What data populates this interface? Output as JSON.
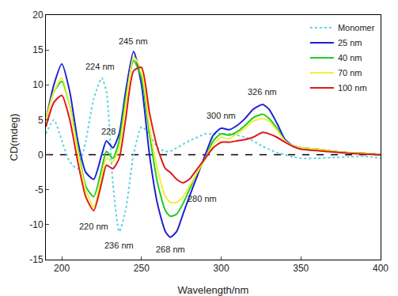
{
  "chart_data": {
    "type": "line",
    "x_label": "Wavelength/nm",
    "y_label": "CD(mdeg)",
    "x": [
      190,
      195,
      200,
      205,
      210,
      215,
      220,
      225,
      228,
      232,
      236,
      240,
      245,
      250,
      255,
      260,
      265,
      268,
      272,
      276,
      280,
      285,
      290,
      295,
      300,
      305,
      310,
      315,
      320,
      326,
      330,
      335,
      340,
      345,
      350,
      360,
      370,
      380,
      390,
      400
    ],
    "series": [
      {
        "name": "Monomer",
        "color": "#5fd3e0",
        "line_style": "dotted",
        "values": [
          3,
          5,
          2,
          -1,
          -2,
          2,
          8,
          11,
          9,
          -4,
          -11,
          -8,
          0,
          4,
          3,
          1,
          0.5,
          0.5,
          1,
          1.5,
          2,
          2.5,
          3,
          3,
          3,
          3,
          2.8,
          2.5,
          2,
          1.2,
          0.8,
          0.3,
          0,
          -0.3,
          -0.5,
          -0.5,
          -0.4,
          -0.3,
          -0.2,
          -0.5
        ]
      },
      {
        "name": "25 nm",
        "color": "#1f1fd6",
        "line_style": "solid",
        "values": [
          5,
          10,
          13,
          9,
          2,
          -2.5,
          -3.5,
          0,
          2,
          1,
          3,
          9,
          14.8,
          10,
          0,
          -7,
          -11,
          -11.8,
          -11,
          -8.5,
          -6,
          -3,
          0,
          2.8,
          3.8,
          3.6,
          4.2,
          5.2,
          6.5,
          7.2,
          6.5,
          4.5,
          2.2,
          1.3,
          1,
          0.8,
          0.5,
          0.3,
          0.2,
          0
        ]
      },
      {
        "name": "40 nm",
        "color": "#22cc22",
        "line_style": "solid",
        "values": [
          5,
          9,
          10.5,
          7,
          1,
          -4.5,
          -6,
          -2,
          0.5,
          -0.5,
          2,
          8,
          13.5,
          11,
          3,
          -4,
          -8,
          -8.8,
          -8.5,
          -7,
          -5,
          -2.5,
          -0.5,
          2,
          3,
          2.8,
          3.3,
          4.2,
          5.3,
          5.8,
          5.2,
          3.8,
          2,
          1.3,
          1,
          0.8,
          0.5,
          0.3,
          0.2,
          0
        ]
      },
      {
        "name": "70 nm",
        "color": "#f2ef3a",
        "line_style": "solid",
        "values": [
          5,
          9,
          11,
          7,
          0.5,
          -5,
          -7.5,
          -3,
          -0.5,
          -1,
          1,
          7,
          14,
          12,
          4,
          -2,
          -6,
          -6.8,
          -6.8,
          -6,
          -4.5,
          -2.5,
          -0.5,
          1.5,
          2.5,
          2.3,
          3,
          3.8,
          4.8,
          5.2,
          4.8,
          3.5,
          2,
          1.3,
          1,
          0.8,
          0.5,
          0.3,
          0.2,
          0
        ]
      },
      {
        "name": "100 nm",
        "color": "#dd1a1a",
        "line_style": "solid",
        "values": [
          4,
          7.5,
          8.5,
          5,
          -1,
          -6,
          -8,
          -4,
          -1.5,
          -2,
          -0.5,
          5,
          12,
          12.5,
          6,
          1,
          -2,
          -2.5,
          -3.5,
          -4,
          -3.5,
          -2,
          -0.5,
          1,
          1.8,
          1.8,
          2,
          2.2,
          2.5,
          3.2,
          3,
          2.5,
          1.8,
          1.2,
          0.8,
          0.6,
          0.4,
          0.2,
          0.1,
          0
        ]
      }
    ],
    "annotations": [
      {
        "text": "245 nm",
        "x": 245,
        "y": 16.3
      },
      {
        "text": "224 nm",
        "x": 224,
        "y": 12.6
      },
      {
        "text": "228",
        "x": 229,
        "y": 3.4
      },
      {
        "text": "300 nm",
        "x": 300,
        "y": 5.6
      },
      {
        "text": "326 nm",
        "x": 326,
        "y": 9
      },
      {
        "text": "220 nm",
        "x": 220,
        "y": -10.2
      },
      {
        "text": "236 nm",
        "x": 236,
        "y": -13
      },
      {
        "text": "268 nm",
        "x": 268,
        "y": -13.5
      },
      {
        "text": "280 nm",
        "x": 288,
        "y": -6.3
      }
    ],
    "xlim": [
      190,
      400
    ],
    "xticks": [
      200,
      250,
      300,
      350,
      400
    ],
    "ylim": [
      -15,
      20
    ],
    "yticks": [
      -15,
      -10,
      -5,
      0,
      5,
      10,
      15,
      20
    ],
    "grid": false,
    "legend": "upper right"
  }
}
